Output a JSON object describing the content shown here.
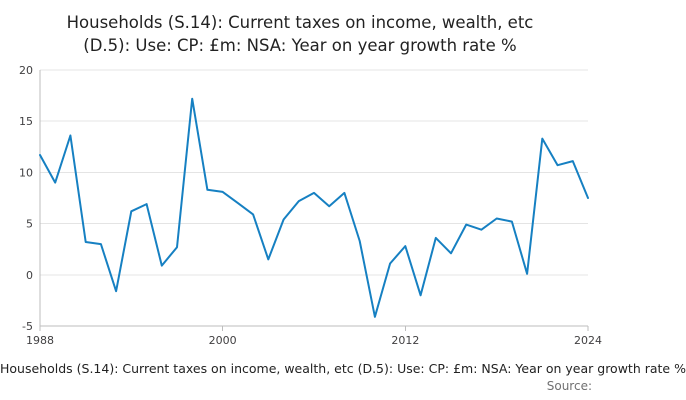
{
  "title": {
    "lines": [
      "Households (S.14): Current taxes on income, wealth, etc",
      "(D.5): Use: CP: £m: NSA: Year on year growth rate %"
    ]
  },
  "footer": {
    "text": "Households (S.14): Current taxes on income, wealth, etc (D.5): Use: CP: £m: NSA: Year on year growth rate %",
    "source_label": "Source:"
  },
  "chart_data": {
    "type": "line",
    "title": "Households (S.14): Current taxes on income, wealth, etc (D.5): Use: CP: £m: NSA: Year on year growth rate %",
    "xlabel": "",
    "ylabel": "",
    "x": [
      1988,
      1989,
      1990,
      1991,
      1992,
      1993,
      1994,
      1995,
      1996,
      1997,
      1998,
      1999,
      2000,
      2001,
      2002,
      2003,
      2004,
      2005,
      2006,
      2007,
      2008,
      2009,
      2010,
      2011,
      2012,
      2013,
      2014,
      2015,
      2016,
      2017,
      2018,
      2019,
      2020,
      2021,
      2022,
      2023,
      2024
    ],
    "values": [
      11.7,
      9.0,
      13.6,
      3.2,
      3.0,
      -1.6,
      6.2,
      6.9,
      0.9,
      2.7,
      17.2,
      8.3,
      8.1,
      7.0,
      5.9,
      1.5,
      5.4,
      7.2,
      8.0,
      6.7,
      8.0,
      3.3,
      -4.1,
      1.1,
      2.8,
      -2.0,
      3.6,
      2.1,
      4.9,
      4.4,
      5.5,
      5.2,
      0.1,
      13.3,
      10.7,
      11.1,
      7.5
    ],
    "xlim": [
      1988,
      2024
    ],
    "ylim": [
      -5,
      20
    ],
    "x_ticks": [
      1988,
      2000,
      2012,
      2024
    ],
    "y_ticks": [
      -5,
      0,
      5,
      10,
      15,
      20
    ],
    "grid": "horizontal",
    "legend": "none",
    "line_color": "#1680c2"
  }
}
